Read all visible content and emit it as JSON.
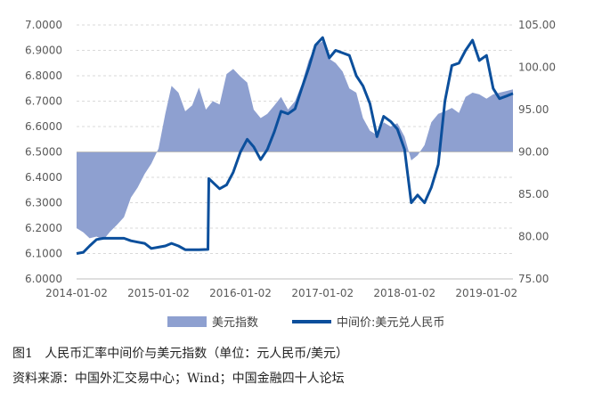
{
  "chart_data": {
    "type": "line",
    "left_axis": {
      "ticks": [
        "6.0000",
        "6.1000",
        "6.2000",
        "6.3000",
        "6.4000",
        "6.5000",
        "6.6000",
        "6.7000",
        "6.8000",
        "6.9000",
        "7.0000"
      ],
      "range": [
        6.0,
        7.0
      ]
    },
    "right_axis": {
      "ticks": [
        "75.00",
        "80.00",
        "85.00",
        "90.00",
        "95.00",
        "100.00",
        "105.00"
      ],
      "range": [
        75,
        105
      ]
    },
    "x_ticks": [
      "2014-01-02",
      "2015-01-02",
      "2016-01-02",
      "2017-01-02",
      "2018-01-02",
      "2019-01-02"
    ],
    "x_range": [
      "2014-01-02",
      "2019-04-30"
    ],
    "grid": "horizontal dashed",
    "legend_position": "bottom",
    "series": [
      {
        "name": "美元指数",
        "kind": "area",
        "axis": "right",
        "baseline": 90,
        "color": "#8ea0d0",
        "points": [
          [
            "2014-01-02",
            81.0
          ],
          [
            "2014-02-01",
            80.5
          ],
          [
            "2014-03-01",
            79.8
          ],
          [
            "2014-04-01",
            80.0
          ],
          [
            "2014-05-01",
            79.6
          ],
          [
            "2014-06-01",
            80.6
          ],
          [
            "2014-07-01",
            81.4
          ],
          [
            "2014-08-01",
            82.3
          ],
          [
            "2014-09-01",
            84.6
          ],
          [
            "2014-10-01",
            85.8
          ],
          [
            "2014-11-01",
            87.4
          ],
          [
            "2014-12-01",
            88.6
          ],
          [
            "2015-01-02",
            90.4
          ],
          [
            "2015-02-01",
            94.5
          ],
          [
            "2015-03-01",
            97.8
          ],
          [
            "2015-04-01",
            97.0
          ],
          [
            "2015-05-01",
            94.8
          ],
          [
            "2015-06-01",
            95.5
          ],
          [
            "2015-07-01",
            97.6
          ],
          [
            "2015-08-01",
            95.0
          ],
          [
            "2015-09-01",
            96.0
          ],
          [
            "2015-10-01",
            95.6
          ],
          [
            "2015-11-01",
            99.2
          ],
          [
            "2015-12-01",
            99.8
          ],
          [
            "2016-01-02",
            98.9
          ],
          [
            "2016-02-01",
            98.2
          ],
          [
            "2016-03-01",
            95.0
          ],
          [
            "2016-04-01",
            94.0
          ],
          [
            "2016-05-01",
            94.5
          ],
          [
            "2016-06-01",
            95.5
          ],
          [
            "2016-07-01",
            96.5
          ],
          [
            "2016-08-01",
            95.0
          ],
          [
            "2016-09-01",
            96.0
          ],
          [
            "2016-10-01",
            98.0
          ],
          [
            "2016-11-01",
            100.8
          ],
          [
            "2016-12-01",
            102.5
          ],
          [
            "2017-01-02",
            103.1
          ],
          [
            "2017-02-01",
            101.0
          ],
          [
            "2017-03-01",
            100.5
          ],
          [
            "2017-04-01",
            99.5
          ],
          [
            "2017-05-01",
            97.5
          ],
          [
            "2017-06-01",
            97.0
          ],
          [
            "2017-07-01",
            94.0
          ],
          [
            "2017-08-01",
            92.5
          ],
          [
            "2017-09-01",
            92.0
          ],
          [
            "2017-10-01",
            93.5
          ],
          [
            "2017-11-01",
            93.0
          ],
          [
            "2017-12-01",
            93.4
          ],
          [
            "2018-01-02",
            91.8
          ],
          [
            "2018-02-01",
            89.0
          ],
          [
            "2018-03-01",
            89.6
          ],
          [
            "2018-04-01",
            90.8
          ],
          [
            "2018-05-01",
            93.5
          ],
          [
            "2018-06-01",
            94.5
          ],
          [
            "2018-07-01",
            94.8
          ],
          [
            "2018-08-01",
            95.2
          ],
          [
            "2018-09-01",
            94.6
          ],
          [
            "2018-10-01",
            96.5
          ],
          [
            "2018-11-01",
            97.0
          ],
          [
            "2018-12-01",
            96.8
          ],
          [
            "2019-01-02",
            96.3
          ],
          [
            "2019-02-01",
            96.8
          ],
          [
            "2019-03-01",
            97.0
          ],
          [
            "2019-04-01",
            97.2
          ],
          [
            "2019-04-30",
            97.4
          ]
        ]
      },
      {
        "name": "中间价:美元兑人民币",
        "kind": "line",
        "axis": "left",
        "color": "#0b4f9c",
        "points": [
          [
            "2014-01-02",
            6.1
          ],
          [
            "2014-02-01",
            6.105
          ],
          [
            "2014-03-01",
            6.13
          ],
          [
            "2014-04-01",
            6.155
          ],
          [
            "2014-05-01",
            6.16
          ],
          [
            "2014-06-01",
            6.16
          ],
          [
            "2014-07-01",
            6.16
          ],
          [
            "2014-08-01",
            6.16
          ],
          [
            "2014-09-01",
            6.15
          ],
          [
            "2014-10-01",
            6.145
          ],
          [
            "2014-11-01",
            6.14
          ],
          [
            "2014-12-01",
            6.12
          ],
          [
            "2015-01-02",
            6.125
          ],
          [
            "2015-02-01",
            6.13
          ],
          [
            "2015-03-01",
            6.14
          ],
          [
            "2015-04-01",
            6.13
          ],
          [
            "2015-05-01",
            6.115
          ],
          [
            "2015-06-01",
            6.115
          ],
          [
            "2015-07-01",
            6.115
          ],
          [
            "2015-08-10",
            6.116
          ],
          [
            "2015-08-14",
            6.395
          ],
          [
            "2015-09-01",
            6.38
          ],
          [
            "2015-10-01",
            6.355
          ],
          [
            "2015-11-01",
            6.37
          ],
          [
            "2015-12-01",
            6.42
          ],
          [
            "2016-01-02",
            6.5
          ],
          [
            "2016-02-01",
            6.55
          ],
          [
            "2016-03-01",
            6.52
          ],
          [
            "2016-04-01",
            6.47
          ],
          [
            "2016-05-01",
            6.51
          ],
          [
            "2016-06-01",
            6.58
          ],
          [
            "2016-07-01",
            6.66
          ],
          [
            "2016-08-01",
            6.65
          ],
          [
            "2016-09-01",
            6.67
          ],
          [
            "2016-10-01",
            6.75
          ],
          [
            "2016-11-01",
            6.83
          ],
          [
            "2016-12-01",
            6.92
          ],
          [
            "2017-01-02",
            6.95
          ],
          [
            "2017-02-01",
            6.87
          ],
          [
            "2017-03-01",
            6.9
          ],
          [
            "2017-04-01",
            6.89
          ],
          [
            "2017-05-01",
            6.88
          ],
          [
            "2017-06-01",
            6.8
          ],
          [
            "2017-07-01",
            6.76
          ],
          [
            "2017-08-01",
            6.69
          ],
          [
            "2017-09-01",
            6.56
          ],
          [
            "2017-10-01",
            6.64
          ],
          [
            "2017-11-01",
            6.62
          ],
          [
            "2017-12-01",
            6.59
          ],
          [
            "2018-01-02",
            6.51
          ],
          [
            "2018-02-01",
            6.3
          ],
          [
            "2018-03-01",
            6.33
          ],
          [
            "2018-04-01",
            6.3
          ],
          [
            "2018-05-01",
            6.36
          ],
          [
            "2018-06-01",
            6.45
          ],
          [
            "2018-07-01",
            6.7
          ],
          [
            "2018-08-01",
            6.84
          ],
          [
            "2018-09-01",
            6.85
          ],
          [
            "2018-10-01",
            6.9
          ],
          [
            "2018-11-01",
            6.94
          ],
          [
            "2018-12-01",
            6.86
          ],
          [
            "2019-01-02",
            6.88
          ],
          [
            "2019-02-01",
            6.75
          ],
          [
            "2019-03-01",
            6.71
          ],
          [
            "2019-04-01",
            6.72
          ],
          [
            "2019-04-30",
            6.73
          ]
        ]
      }
    ]
  },
  "caption": {
    "figure_label": "图1",
    "title": "人民币汇率中间价与美元指数（单位：元人民币/美元）",
    "source": "资料来源：中国外汇交易中心；Wind；中国金融四十人论坛"
  }
}
